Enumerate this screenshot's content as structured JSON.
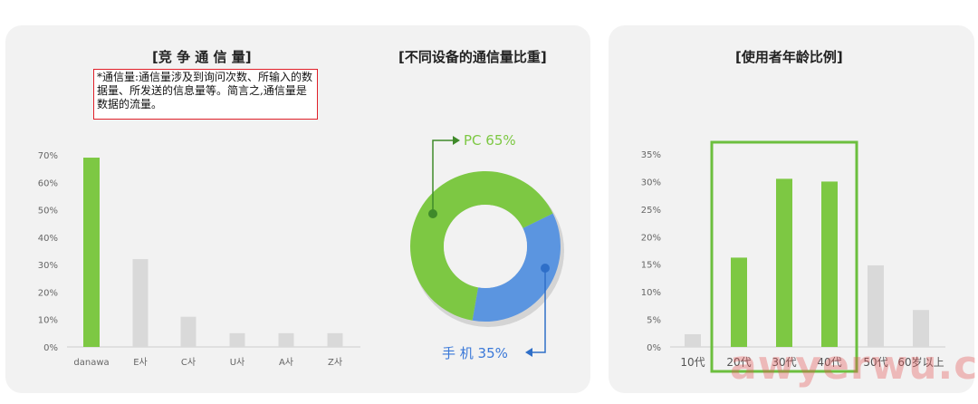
{
  "left_panel": {
    "title": "[竞 争 通 信 量]",
    "note": "*通信量:通信量涉及到询问次数、所输入的数据量、所发送的信息量等。简言之,通信量是数据的流量。",
    "donut_title": "[不同设备的通信量比重]"
  },
  "right_panel": {
    "title": "[使用者年龄比例]"
  },
  "watermark": "awyerwu.com",
  "colors": {
    "green": "#7dc843",
    "gray": "#d9d9d9",
    "blue": "#5b95e0",
    "highlight_box": "#6cbf3e"
  },
  "chart_data": [
    {
      "type": "bar",
      "title": "[竞 争 通 信 量]",
      "categories": [
        "danawa",
        "E사",
        "C사",
        "U사",
        "A사",
        "Z사"
      ],
      "values": [
        69,
        32,
        11,
        5,
        5,
        5
      ],
      "y_ticks": [
        "0%",
        "10%",
        "20%",
        "30%",
        "40%",
        "50%",
        "60%",
        "70%"
      ],
      "ylim": [
        0,
        70
      ],
      "highlight_index": 0,
      "grid": false
    },
    {
      "type": "pie",
      "title": "[不同设备的通信量比重]",
      "slices": [
        {
          "label": "PC 65%",
          "value": 65
        },
        {
          "label": "手 机 35%",
          "value": 35
        }
      ]
    },
    {
      "type": "bar",
      "title": "[使用者年龄比例]",
      "categories": [
        "10代",
        "20代",
        "30代",
        "40代",
        "50代",
        "60岁以上"
      ],
      "values": [
        2.3,
        16.2,
        30.5,
        30.0,
        14.8,
        6.7
      ],
      "y_ticks": [
        "0%",
        "5%",
        "10%",
        "15%",
        "20%",
        "25%",
        "30%",
        "35%"
      ],
      "ylim": [
        0,
        35
      ],
      "highlight_indices": [
        1,
        2,
        3
      ],
      "grid": false
    }
  ]
}
